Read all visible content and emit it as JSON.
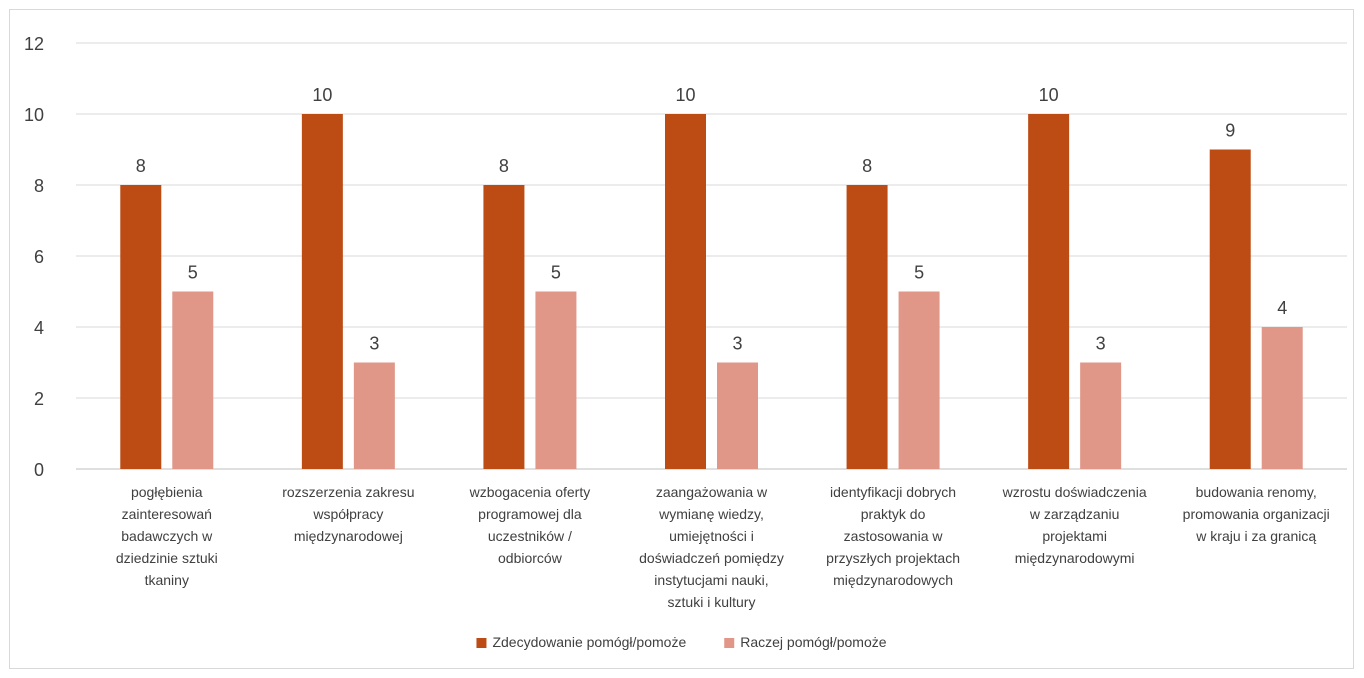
{
  "chart_data": {
    "type": "bar",
    "title": "",
    "xlabel": "",
    "ylabel": "",
    "ylim": [
      0,
      12
    ],
    "yticks": [
      0,
      2,
      4,
      6,
      8,
      10,
      12
    ],
    "grid": true,
    "legend_position": "bottom",
    "categories": [
      "pogłębienia zainteresowań badawczych w dziedzinie sztuki tkaniny",
      "rozszerzenia zakresu współpracy międzynarodowej",
      "wzbogacenia oferty programowej dla uczestników / odbiorców",
      "zaangażowania w wymianę wiedzy, umiejętności i doświadczeń pomiędzy instytucjami nauki, sztuki i kultury",
      "identyfikacji dobrych praktyk do zastosowania w przyszłych projektach międzynarodowych",
      "wzrostu doświadczenia w zarządzaniu projektami międzynarodowymi",
      "budowania renomy, promowania organizacji w kraju i za granicą"
    ],
    "category_lines": [
      [
        "pogłębienia",
        "zainteresowań",
        "badawczych w",
        "dziedzinie sztuki",
        "tkaniny"
      ],
      [
        "rozszerzenia zakresu",
        "współpracy",
        "międzynarodowej"
      ],
      [
        "wzbogacenia oferty",
        "programowej dla",
        "uczestników /",
        "odbiorców"
      ],
      [
        "zaangażowania w",
        "wymianę wiedzy,",
        "umiejętności i",
        "doświadczeń pomiędzy",
        "instytucjami nauki,",
        "sztuki i kultury"
      ],
      [
        "identyfikacji dobrych",
        "praktyk do",
        "zastosowania w",
        "przyszłych projektach",
        "międzynarodowych"
      ],
      [
        "wzrostu doświadczenia",
        "w zarządzaniu",
        "projektami",
        "międzynarodowymi"
      ],
      [
        "budowania renomy,",
        "promowania organizacji",
        "w kraju i za granicą"
      ]
    ],
    "series": [
      {
        "name": "Zdecydowanie pomógł/pomoże",
        "color": "#BC4C14",
        "values": [
          8,
          10,
          8,
          10,
          8,
          10,
          9
        ]
      },
      {
        "name": "Raczej pomógł/pomoże",
        "color": "#E09787",
        "values": [
          5,
          3,
          5,
          3,
          5,
          3,
          4
        ]
      }
    ]
  }
}
